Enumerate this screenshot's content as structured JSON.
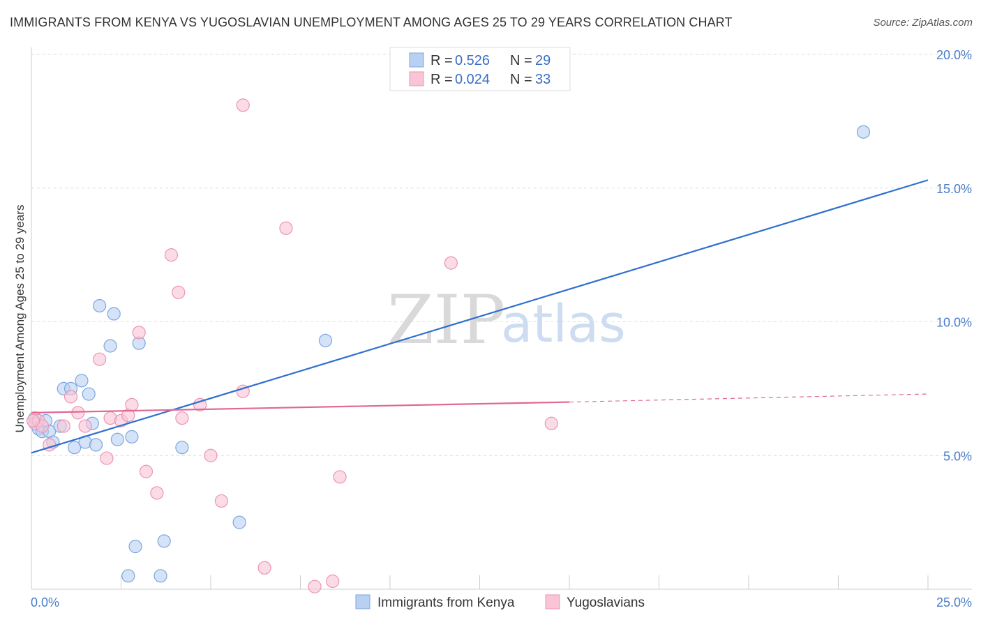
{
  "title": "IMMIGRANTS FROM KENYA VS YUGOSLAVIAN UNEMPLOYMENT AMONG AGES 25 TO 29 YEARS CORRELATION CHART",
  "source": "Source: ZipAtlas.com",
  "watermark": {
    "zip": "ZIP",
    "atlas": "atlas"
  },
  "colors": {
    "kenya_fill": "#b8d0f2",
    "kenya_stroke": "#7ea6de",
    "kenya_line": "#2f6fd0",
    "yugo_fill": "#f8c4d6",
    "yugo_stroke": "#eb94b3",
    "yugo_line": "#e06896",
    "grid": "#dddddd",
    "tick_text": "#4a7cc9"
  },
  "legend": {
    "rows": [
      {
        "r_label": "R =",
        "r_value": "0.526",
        "n_label": "N =",
        "n_value": "29"
      },
      {
        "r_label": "R =",
        "r_value": "0.024",
        "n_label": "N =",
        "n_value": "33"
      }
    ]
  },
  "chart_data": {
    "type": "scatter",
    "title": "IMMIGRANTS FROM KENYA VS YUGOSLAVIAN UNEMPLOYMENT AMONG AGES 25 TO 29 YEARS CORRELATION CHART",
    "xlabel": "",
    "ylabel": "Unemployment Among Ages 25 to 29 years",
    "xlim": [
      0,
      25
    ],
    "ylim": [
      0,
      20
    ],
    "x_tick_labels": [
      "0.0%",
      "25.0%"
    ],
    "y_ticks": [
      5,
      10,
      15,
      20
    ],
    "y_tick_labels": [
      "5.0%",
      "10.0%",
      "15.0%",
      "20.0%"
    ],
    "series": [
      {
        "name": "Immigrants from Kenya",
        "points": [
          [
            0.1,
            6.4
          ],
          [
            0.2,
            6.0
          ],
          [
            0.3,
            5.9
          ],
          [
            0.4,
            6.3
          ],
          [
            0.5,
            5.9
          ],
          [
            0.6,
            5.5
          ],
          [
            0.8,
            6.1
          ],
          [
            0.9,
            7.5
          ],
          [
            1.1,
            7.5
          ],
          [
            1.2,
            5.3
          ],
          [
            1.4,
            7.8
          ],
          [
            1.6,
            7.3
          ],
          [
            1.5,
            5.5
          ],
          [
            1.7,
            6.2
          ],
          [
            1.8,
            5.4
          ],
          [
            1.9,
            10.6
          ],
          [
            2.2,
            9.1
          ],
          [
            2.3,
            10.3
          ],
          [
            2.4,
            5.6
          ],
          [
            2.7,
            0.5
          ],
          [
            2.8,
            5.7
          ],
          [
            2.9,
            1.6
          ],
          [
            3.0,
            9.2
          ],
          [
            3.6,
            0.5
          ],
          [
            3.7,
            1.8
          ],
          [
            4.2,
            5.3
          ],
          [
            5.8,
            2.5
          ],
          [
            8.2,
            9.3
          ],
          [
            23.2,
            17.1
          ]
        ],
        "trend": {
          "x0": 0.0,
          "y0": 5.1,
          "x1": 25.0,
          "y1": 15.3
        }
      },
      {
        "name": "Yugoslavians",
        "points": [
          [
            0.1,
            6.2
          ],
          [
            0.2,
            6.3
          ],
          [
            0.3,
            6.1
          ],
          [
            0.5,
            5.4
          ],
          [
            0.9,
            6.1
          ],
          [
            1.1,
            7.2
          ],
          [
            1.3,
            6.6
          ],
          [
            1.5,
            6.1
          ],
          [
            1.9,
            8.6
          ],
          [
            2.1,
            4.9
          ],
          [
            2.2,
            6.4
          ],
          [
            2.5,
            6.3
          ],
          [
            2.7,
            6.5
          ],
          [
            2.8,
            6.9
          ],
          [
            3.0,
            9.6
          ],
          [
            3.2,
            4.4
          ],
          [
            3.5,
            3.6
          ],
          [
            3.9,
            12.5
          ],
          [
            4.1,
            11.1
          ],
          [
            4.2,
            6.4
          ],
          [
            4.7,
            6.9
          ],
          [
            5.0,
            5.0
          ],
          [
            5.3,
            3.3
          ],
          [
            5.9,
            7.4
          ],
          [
            5.9,
            18.1
          ],
          [
            6.5,
            0.8
          ],
          [
            7.1,
            13.5
          ],
          [
            7.9,
            0.1
          ],
          [
            8.4,
            0.3
          ],
          [
            8.6,
            4.2
          ],
          [
            11.7,
            12.2
          ],
          [
            14.5,
            6.2
          ],
          [
            0.05,
            6.3
          ]
        ],
        "trend": {
          "x0": 0.0,
          "y0": 6.6,
          "x1": 15.0,
          "y1": 7.0,
          "dash_to_x": 25.0,
          "dash_to_y": 7.3
        }
      }
    ],
    "legend_placement": "top-center",
    "grid": true
  }
}
